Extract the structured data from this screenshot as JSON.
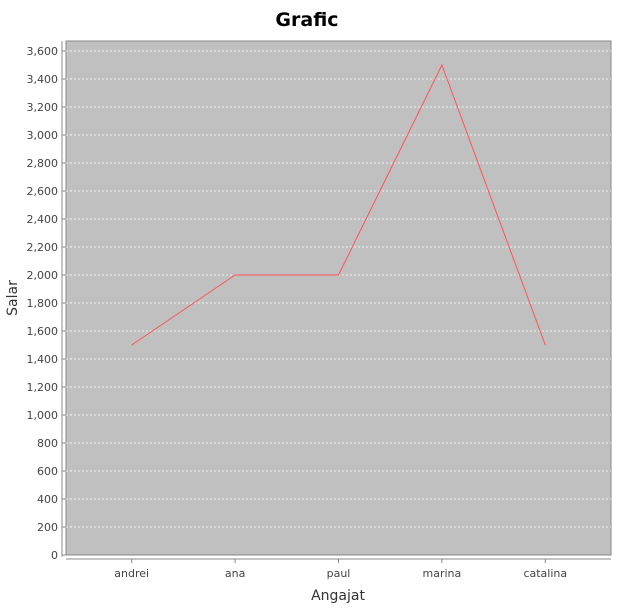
{
  "chart_data": {
    "type": "line",
    "title": "Grafic",
    "xlabel": "Angajat",
    "ylabel": "Salar",
    "categories": [
      "andrei",
      "ana",
      "paul",
      "marina",
      "catalina"
    ],
    "series": [
      {
        "values": [
          1500,
          2000,
          2000,
          3500,
          1500
        ]
      }
    ],
    "ylim": [
      0,
      3600
    ],
    "yticks": [
      0,
      200,
      400,
      600,
      800,
      1000,
      1200,
      1400,
      1600,
      1800,
      2000,
      2200,
      2400,
      2600,
      2800,
      3000,
      3200,
      3400,
      3600
    ],
    "ytick_labels": [
      "0",
      "200",
      "400",
      "600",
      "800",
      "1,000",
      "1,200",
      "1,400",
      "1,600",
      "1,800",
      "2,000",
      "2,200",
      "2,400",
      "2,600",
      "2,800",
      "3,000",
      "3,200",
      "3,400",
      "3,600"
    ],
    "grid": true,
    "legend": "none",
    "colors": {
      "plot_background": "#c0c0c0",
      "series_line": "#ff5555",
      "gridline": "#ffffff",
      "axis_line": "#888888"
    }
  }
}
